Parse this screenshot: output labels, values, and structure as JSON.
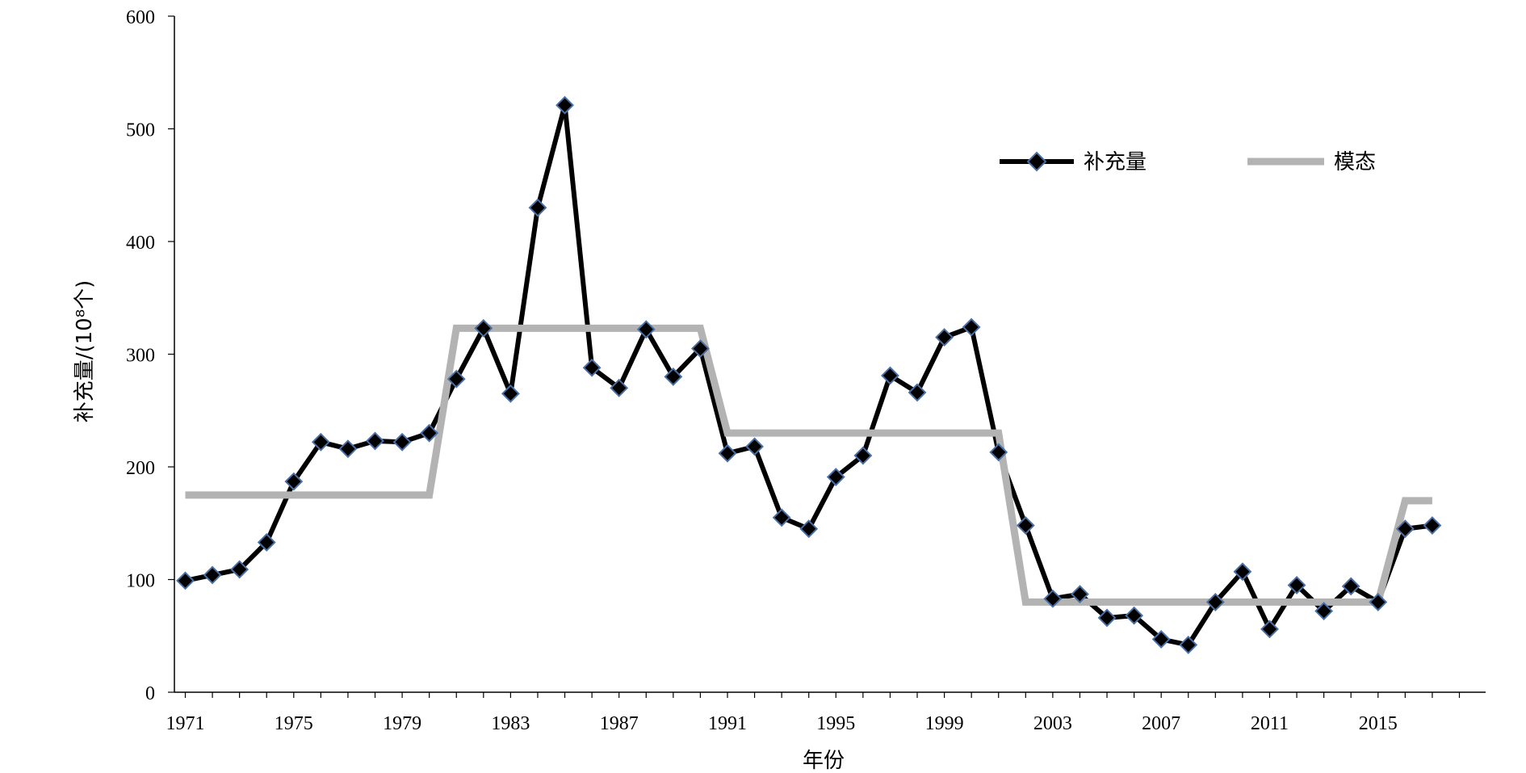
{
  "chart_data": {
    "type": "line",
    "xlabel": "年份",
    "ylabel": "补充量/(10⁸个)",
    "xlim": [
      1971,
      2018
    ],
    "ylim": [
      0,
      600
    ],
    "x_ticks": [
      "1971",
      "1975",
      "1979",
      "1983",
      "1987",
      "1991",
      "1995",
      "1999",
      "2003",
      "2007",
      "2011",
      "2015"
    ],
    "y_ticks": [
      "0",
      "100",
      "200",
      "300",
      "400",
      "500",
      "600"
    ],
    "grid": false,
    "legend_position": "top-right",
    "series": [
      {
        "name": "补充量",
        "color": "#000000",
        "marker": "diamond",
        "marker_edge_color": "#4a6fa5",
        "x": [
          1971,
          1972,
          1973,
          1974,
          1975,
          1976,
          1977,
          1978,
          1979,
          1980,
          1981,
          1982,
          1983,
          1984,
          1985,
          1986,
          1987,
          1988,
          1989,
          1990,
          1991,
          1992,
          1993,
          1994,
          1995,
          1996,
          1997,
          1998,
          1999,
          2000,
          2001,
          2002,
          2003,
          2004,
          2005,
          2006,
          2007,
          2008,
          2009,
          2010,
          2011,
          2012,
          2013,
          2014,
          2015,
          2016,
          2017
        ],
        "values": [
          99,
          104,
          109,
          133,
          187,
          222,
          216,
          223,
          222,
          230,
          278,
          323,
          265,
          430,
          521,
          288,
          270,
          322,
          280,
          305,
          212,
          218,
          155,
          145,
          191,
          210,
          281,
          266,
          315,
          324,
          213,
          148,
          83,
          87,
          66,
          68,
          47,
          42,
          80,
          107,
          56,
          95,
          72,
          94,
          80,
          145,
          148
        ]
      },
      {
        "name": "模态",
        "color": "#b3b3b3",
        "marker": "none",
        "x": [
          1971,
          1980,
          1981,
          1990,
          1991,
          2001,
          2002,
          2015,
          2016,
          2017
        ],
        "values": [
          175,
          175,
          323,
          323,
          230,
          230,
          80,
          80,
          170,
          170
        ]
      }
    ]
  }
}
